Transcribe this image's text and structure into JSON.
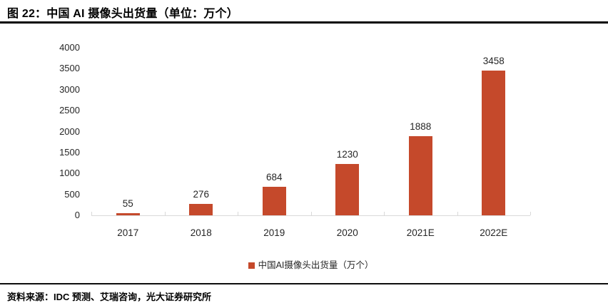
{
  "header": {
    "title": "图 22：中国 AI 摄像头出货量（单位：万个）"
  },
  "legend": {
    "label": "中国AI摄像头出货量（万个）"
  },
  "footer": {
    "source": "资料来源：IDC 预测、艾瑞咨询，光大证券研究所"
  },
  "colors": {
    "bar": "#C5492B",
    "axis": "#D9D9D9",
    "label_text": "#262626",
    "rule": "#000000"
  },
  "chart_data": {
    "type": "bar",
    "categories": [
      "2017",
      "2018",
      "2019",
      "2020",
      "2021E",
      "2022E"
    ],
    "values": [
      55,
      276,
      684,
      1230,
      1888,
      3458
    ],
    "title": "中国AI摄像头出货量（万个）",
    "xlabel": "",
    "ylabel": "",
    "ylim": [
      0,
      4000
    ],
    "yticks": [
      0,
      500,
      1000,
      1500,
      2000,
      2500,
      3000,
      3500,
      4000
    ],
    "grid": false,
    "data_labels": true,
    "legend_position": "bottom"
  }
}
